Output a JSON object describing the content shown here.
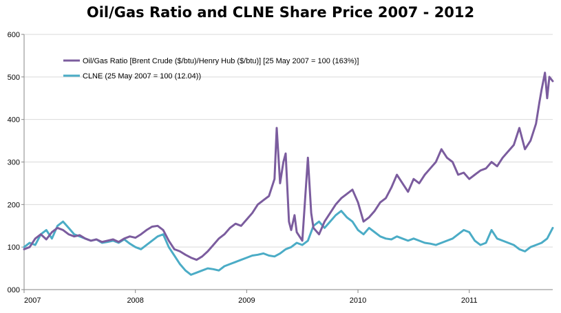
{
  "chart_data": {
    "type": "line",
    "title": "Oil/Gas Ratio and CLNE Share Price 2007 - 2012",
    "xlabel": "",
    "ylabel": "",
    "ylim": [
      0,
      600
    ],
    "xlim": [
      2007.0,
      2011.75
    ],
    "y_ticks": [
      "000",
      "100",
      "200",
      "300",
      "400",
      "500",
      "600"
    ],
    "x_ticks": [
      "2007",
      "2008",
      "2009",
      "2010",
      "2011"
    ],
    "grid": "horizontal",
    "legend_position": "top-left",
    "series": [
      {
        "name": "Oil/Gas Ratio [Brent Crude ($/btu)/Henry Hub ($/btu)] [25 May 2007 = 100 (163%)]",
        "color": "#7B5C9E",
        "x": [
          2007.0,
          2007.05,
          2007.1,
          2007.15,
          2007.2,
          2007.25,
          2007.3,
          2007.35,
          2007.4,
          2007.45,
          2007.5,
          2007.55,
          2007.6,
          2007.65,
          2007.7,
          2007.75,
          2007.8,
          2007.85,
          2007.9,
          2007.95,
          2008.0,
          2008.05,
          2008.1,
          2008.15,
          2008.2,
          2008.25,
          2008.3,
          2008.35,
          2008.4,
          2008.45,
          2008.5,
          2008.55,
          2008.6,
          2008.65,
          2008.7,
          2008.75,
          2008.8,
          2008.85,
          2008.9,
          2008.95,
          2009.0,
          2009.05,
          2009.1,
          2009.15,
          2009.2,
          2009.25,
          2009.27,
          2009.3,
          2009.33,
          2009.35,
          2009.38,
          2009.4,
          2009.43,
          2009.45,
          2009.5,
          2009.55,
          2009.58,
          2009.6,
          2009.65,
          2009.7,
          2009.75,
          2009.8,
          2009.85,
          2009.9,
          2009.95,
          2010.0,
          2010.05,
          2010.1,
          2010.15,
          2010.2,
          2010.25,
          2010.3,
          2010.35,
          2010.4,
          2010.45,
          2010.5,
          2010.55,
          2010.6,
          2010.65,
          2010.7,
          2010.75,
          2010.8,
          2010.85,
          2010.9,
          2010.95,
          2011.0,
          2011.05,
          2011.1,
          2011.15,
          2011.2,
          2011.25,
          2011.3,
          2011.35,
          2011.4,
          2011.45,
          2011.5,
          2011.55,
          2011.6,
          2011.63,
          2011.65,
          2011.68,
          2011.7,
          2011.72,
          2011.75
        ],
        "values": [
          95,
          100,
          120,
          130,
          118,
          135,
          145,
          140,
          130,
          125,
          128,
          120,
          115,
          118,
          112,
          115,
          118,
          112,
          120,
          125,
          122,
          130,
          140,
          148,
          150,
          140,
          115,
          95,
          90,
          82,
          75,
          70,
          78,
          90,
          105,
          120,
          130,
          145,
          155,
          150,
          165,
          180,
          200,
          210,
          220,
          260,
          380,
          250,
          300,
          320,
          160,
          140,
          175,
          135,
          115,
          310,
          180,
          145,
          130,
          160,
          180,
          200,
          215,
          225,
          235,
          205,
          160,
          170,
          185,
          205,
          215,
          240,
          270,
          250,
          230,
          260,
          250,
          270,
          285,
          300,
          330,
          310,
          300,
          270,
          275,
          260,
          270,
          280,
          285,
          300,
          290,
          310,
          325,
          340,
          380,
          330,
          350,
          390,
          440,
          470,
          510,
          450,
          500,
          490
        ]
      },
      {
        "name": "CLNE (25 May 2007 = 100 (12.04))",
        "color": "#4BACC6",
        "x": [
          2007.0,
          2007.05,
          2007.1,
          2007.15,
          2007.2,
          2007.25,
          2007.3,
          2007.35,
          2007.4,
          2007.45,
          2007.5,
          2007.55,
          2007.6,
          2007.65,
          2007.7,
          2007.75,
          2007.8,
          2007.85,
          2007.9,
          2007.95,
          2008.0,
          2008.05,
          2008.1,
          2008.15,
          2008.2,
          2008.25,
          2008.3,
          2008.35,
          2008.4,
          2008.45,
          2008.5,
          2008.55,
          2008.6,
          2008.65,
          2008.7,
          2008.75,
          2008.8,
          2008.85,
          2008.9,
          2008.95,
          2009.0,
          2009.05,
          2009.1,
          2009.15,
          2009.2,
          2009.25,
          2009.3,
          2009.35,
          2009.4,
          2009.45,
          2009.5,
          2009.55,
          2009.6,
          2009.65,
          2009.7,
          2009.75,
          2009.8,
          2009.85,
          2009.9,
          2009.95,
          2010.0,
          2010.05,
          2010.1,
          2010.15,
          2010.2,
          2010.25,
          2010.3,
          2010.35,
          2010.4,
          2010.45,
          2010.5,
          2010.55,
          2010.6,
          2010.65,
          2010.7,
          2010.75,
          2010.8,
          2010.85,
          2010.9,
          2010.95,
          2011.0,
          2011.05,
          2011.1,
          2011.15,
          2011.2,
          2011.25,
          2011.3,
          2011.35,
          2011.4,
          2011.45,
          2011.5,
          2011.55,
          2011.6,
          2011.65,
          2011.7,
          2011.75
        ],
        "values": [
          100,
          110,
          105,
          130,
          140,
          120,
          150,
          160,
          145,
          130,
          125,
          120,
          115,
          118,
          110,
          112,
          115,
          110,
          118,
          108,
          100,
          95,
          105,
          115,
          125,
          130,
          100,
          80,
          60,
          45,
          35,
          40,
          45,
          50,
          48,
          45,
          55,
          60,
          65,
          70,
          75,
          80,
          82,
          85,
          80,
          78,
          85,
          95,
          100,
          110,
          105,
          115,
          150,
          160,
          145,
          160,
          175,
          185,
          170,
          160,
          140,
          130,
          145,
          135,
          125,
          120,
          118,
          125,
          120,
          115,
          120,
          115,
          110,
          108,
          105,
          110,
          115,
          120,
          130,
          140,
          135,
          115,
          105,
          110,
          140,
          120,
          115,
          110,
          105,
          95,
          90,
          100,
          105,
          110,
          120,
          145
        ]
      }
    ]
  }
}
